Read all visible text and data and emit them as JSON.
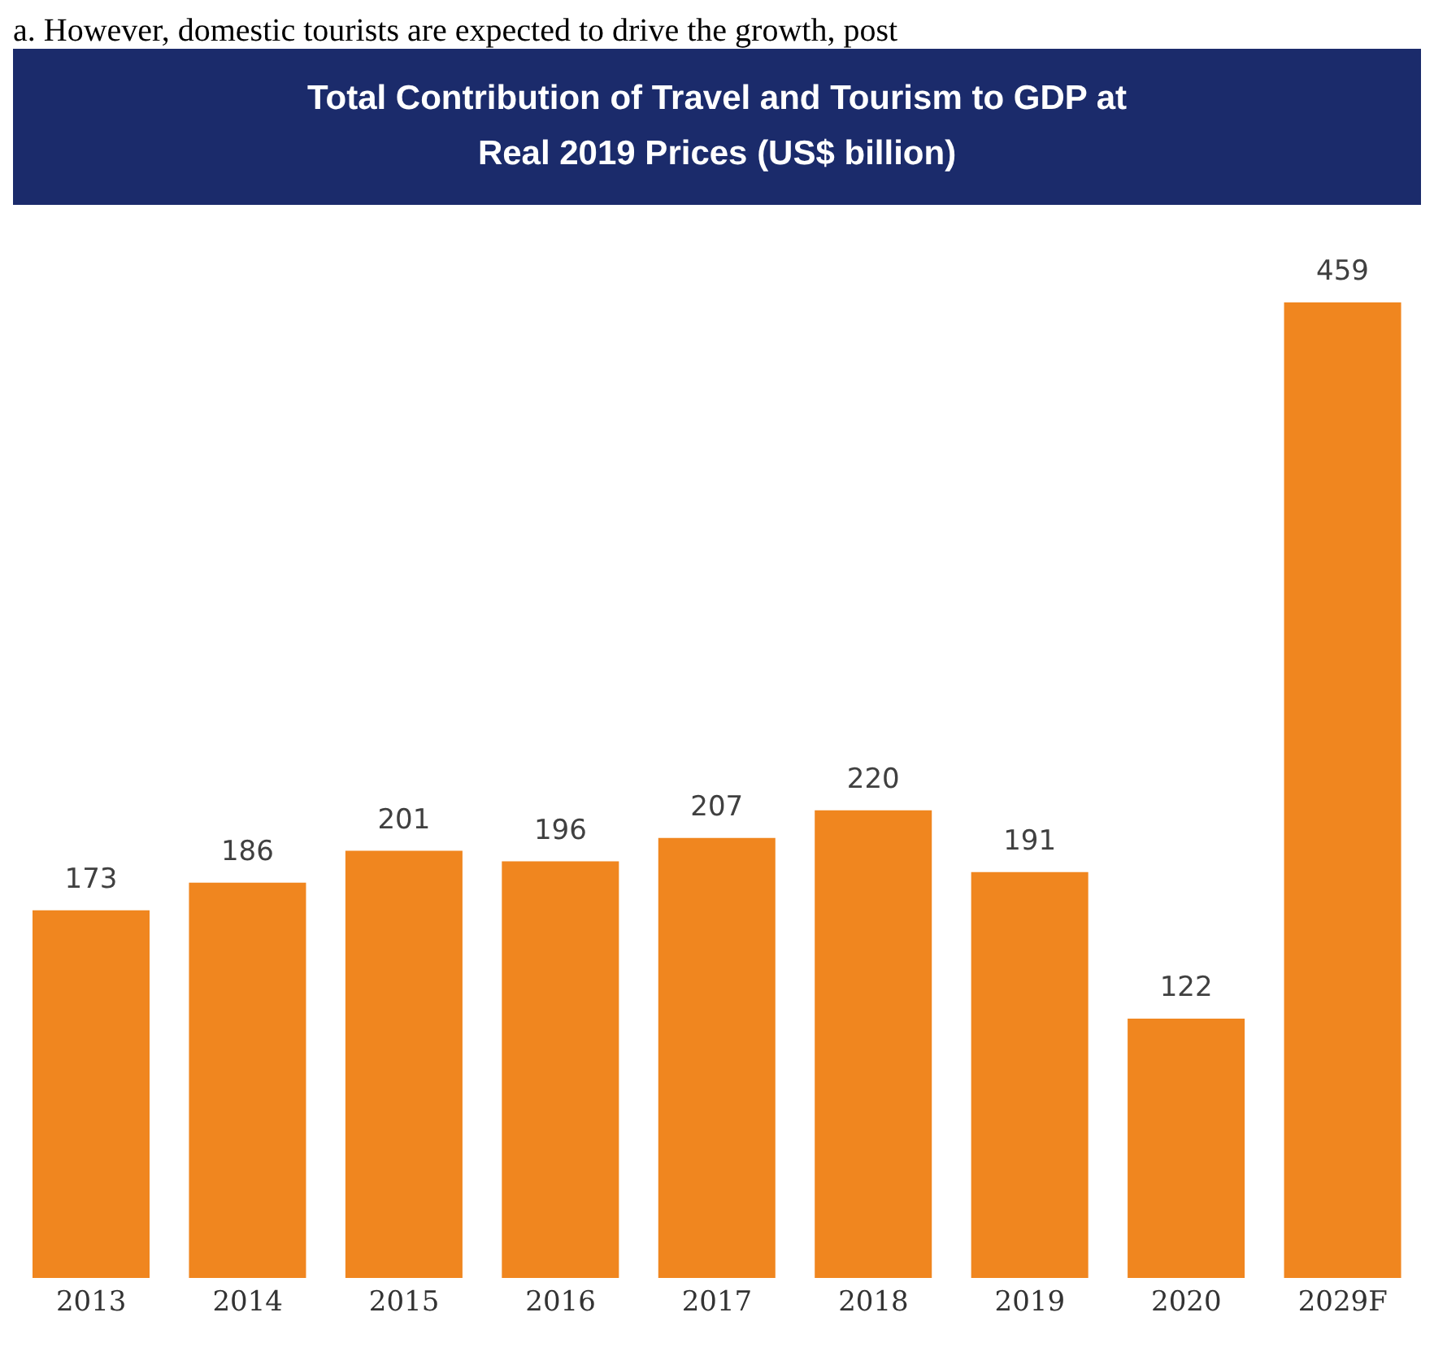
{
  "chart_data": {
    "type": "bar",
    "title": "Total Contribution of Travel and Tourism to GDP at Real 2019 Prices (US$ billion)",
    "annotations": [
      "a. However, domestic tourists are expected to drive the growth, post"
    ],
    "categories": [
      "2013",
      "2014",
      "2015",
      "2016",
      "2017",
      "2018",
      "2019",
      "2020",
      "2029F"
    ],
    "values": [
      173,
      186,
      201,
      196,
      207,
      220,
      191,
      122,
      459
    ],
    "color": "#f0861f",
    "data_labels": true
  }
}
